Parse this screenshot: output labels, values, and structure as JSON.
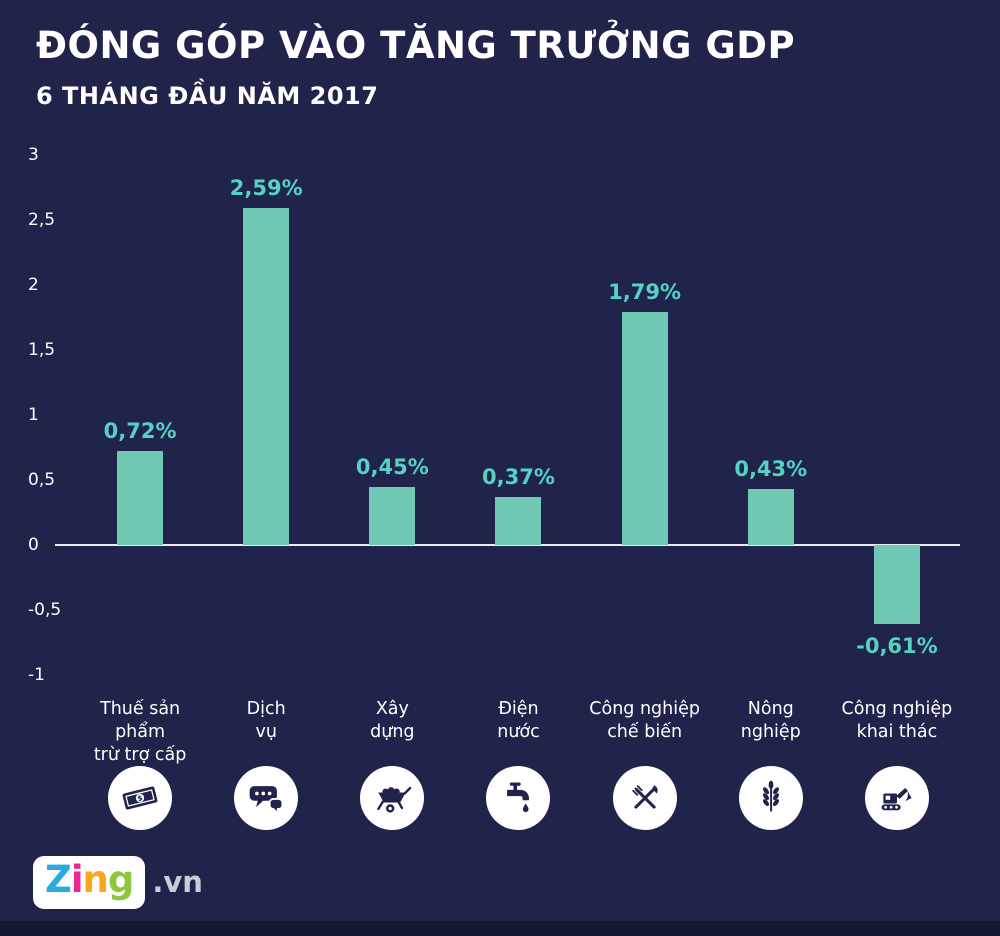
{
  "header": {
    "title": "ĐÓNG GÓP VÀO TĂNG TRƯỞNG GDP",
    "subtitle": "6 THÁNG ĐẦU NĂM 2017"
  },
  "colors": {
    "background": "#20234a",
    "bar": "#6fc7b4",
    "value_label": "#55d3c2",
    "text": "#ffffff",
    "axis_line": "#e9ecf2",
    "circle_bg": "#ffffff",
    "footer": "#141732"
  },
  "chart_data": {
    "type": "bar",
    "title": "ĐÓNG GÓP VÀO TĂNG TRƯỞNG GDP",
    "subtitle": "6 THÁNG ĐẦU NĂM 2017",
    "categories": [
      "Thuế sản phẩm trừ trợ cấp",
      "Dịch vụ",
      "Xây dựng",
      "Điện nước",
      "Công nghiệp chế biến",
      "Nông nghiệp",
      "Công nghiệp khai thác"
    ],
    "values": [
      0.72,
      2.59,
      0.45,
      0.37,
      1.79,
      0.43,
      -0.61
    ],
    "value_labels": [
      "0,72%",
      "2,59%",
      "0,45%",
      "0,37%",
      "1,79%",
      "0,43%",
      "-0,61%"
    ],
    "unit": "%",
    "xlabel": "",
    "ylabel": "",
    "ylim": [
      -1,
      3
    ],
    "yticks": {
      "values": [
        3,
        2.5,
        2,
        1.5,
        1,
        0.5,
        0,
        -0.5,
        -1
      ],
      "labels": [
        "3",
        "2,5",
        "2",
        "1,5",
        "1",
        "0,5",
        "0",
        "-0,5",
        "-1"
      ]
    },
    "grid": false,
    "legend": false
  },
  "bars": [
    {
      "line1": "Thuế sản phẩm",
      "line2": "trừ trợ cấp",
      "value": 0.72,
      "display": "0,72%",
      "icon": "money-icon"
    },
    {
      "line1": "Dịch",
      "line2": "vụ",
      "value": 2.59,
      "display": "2,59%",
      "icon": "chat-icon"
    },
    {
      "line1": "Xây",
      "line2": "dựng",
      "value": 0.45,
      "display": "0,45%",
      "icon": "wheelbarrow-icon"
    },
    {
      "line1": "Điện",
      "line2": "nước",
      "value": 0.37,
      "display": "0,37%",
      "icon": "water-tap-icon"
    },
    {
      "line1": "Công nghiệp",
      "line2": "chế biến",
      "value": 1.79,
      "display": "1,79%",
      "icon": "cutlery-icon"
    },
    {
      "line1": "Nông",
      "line2": "nghiệp",
      "value": 0.43,
      "display": "0,43%",
      "icon": "wheat-icon"
    },
    {
      "line1": "Công nghiệp",
      "line2": "khai thác",
      "value": -0.61,
      "display": "-0,61%",
      "icon": "excavator-icon"
    }
  ],
  "logo": {
    "letters": [
      {
        "char": "Z",
        "color": "#29aae1"
      },
      {
        "char": "i",
        "color": "#ec268f"
      },
      {
        "char": "n",
        "color": "#f7a81b"
      },
      {
        "char": "g",
        "color": "#8dc63f"
      }
    ],
    "suffix": ".vn"
  }
}
